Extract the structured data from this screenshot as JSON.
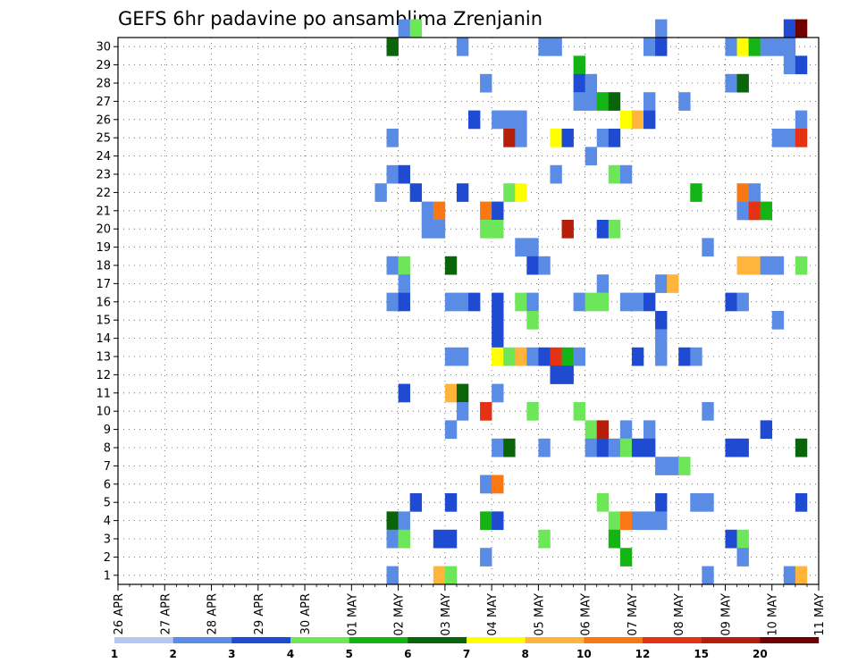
{
  "chart_data": {
    "type": "heatmap",
    "title": "GEFS 6hr padavine po ansamblima Zrenjanin",
    "x_tick_labels": [
      "26 APR",
      "27 APR",
      "28 APR",
      "29 APR",
      "30 APR",
      "01 MAY",
      "02 MAY",
      "03 MAY",
      "04 MAY",
      "05 MAY",
      "06 MAY",
      "07 MAY",
      "08 MAY",
      "09 MAY",
      "10 MAY",
      "11 MAY"
    ],
    "y_tick_labels": [
      "1",
      "2",
      "3",
      "4",
      "5",
      "6",
      "7",
      "8",
      "9",
      "10",
      "11",
      "12",
      "13",
      "14",
      "15",
      "16",
      "17",
      "18",
      "19",
      "20",
      "21",
      "22",
      "23",
      "24",
      "25",
      "26",
      "27",
      "28",
      "29",
      "30"
    ],
    "x_unit": "6-hour step from 26 APR 00Z",
    "y_unit": "ensemble member",
    "grid": true,
    "colorbar": {
      "boundaries": [
        1,
        2,
        3,
        4,
        5,
        6,
        7,
        8,
        10,
        12,
        15,
        20
      ],
      "boundary_labels": [
        "1",
        "2",
        "3",
        "4",
        "5",
        "6",
        "7",
        "8",
        "10",
        "12",
        "15",
        "20"
      ],
      "colors": [
        "#b4c8f0",
        "#5a8ce6",
        "#1e4bd2",
        "#6ee65a",
        "#14b414",
        "#0a640a",
        "#ffff00",
        "#ffb43c",
        "#fa7814",
        "#e63214",
        "#b41e0a",
        "#6e0000"
      ]
    },
    "cells": [
      [
        24,
        30,
        1
      ],
      [
        25,
        30,
        3
      ],
      [
        46,
        30,
        1
      ],
      [
        57,
        30,
        2
      ],
      [
        58,
        30,
        11
      ],
      [
        23,
        29,
        5
      ],
      [
        29,
        29,
        1
      ],
      [
        36,
        29,
        1
      ],
      [
        37,
        29,
        1
      ],
      [
        45,
        29,
        1
      ],
      [
        46,
        29,
        2
      ],
      [
        52,
        29,
        1
      ],
      [
        53,
        29,
        6
      ],
      [
        54,
        29,
        4
      ],
      [
        55,
        29,
        1
      ],
      [
        56,
        29,
        1
      ],
      [
        57,
        29,
        1
      ],
      [
        39,
        28,
        4
      ],
      [
        57,
        28,
        1
      ],
      [
        58,
        28,
        2
      ],
      [
        31,
        27,
        1
      ],
      [
        39,
        27,
        2
      ],
      [
        40,
        27,
        1
      ],
      [
        52,
        27,
        1
      ],
      [
        53,
        27,
        5
      ],
      [
        39,
        26,
        1
      ],
      [
        40,
        26,
        1
      ],
      [
        41,
        26,
        4
      ],
      [
        42,
        26,
        5
      ],
      [
        45,
        26,
        1
      ],
      [
        48,
        26,
        1
      ],
      [
        30,
        25,
        2
      ],
      [
        32,
        25,
        1
      ],
      [
        33,
        25,
        1
      ],
      [
        34,
        25,
        1
      ],
      [
        43,
        25,
        6
      ],
      [
        44,
        25,
        7
      ],
      [
        45,
        25,
        2
      ],
      [
        58,
        25,
        1
      ],
      [
        23,
        24,
        1
      ],
      [
        33,
        24,
        10
      ],
      [
        34,
        24,
        1
      ],
      [
        37,
        24,
        6
      ],
      [
        38,
        24,
        2
      ],
      [
        41,
        24,
        1
      ],
      [
        42,
        24,
        2
      ],
      [
        56,
        24,
        1
      ],
      [
        57,
        24,
        1
      ],
      [
        58,
        24,
        9
      ],
      [
        40,
        23,
        1
      ],
      [
        23,
        22,
        1
      ],
      [
        24,
        22,
        2
      ],
      [
        37,
        22,
        1
      ],
      [
        42,
        22,
        3
      ],
      [
        43,
        22,
        1
      ],
      [
        22,
        21,
        1
      ],
      [
        25,
        21,
        2
      ],
      [
        29,
        21,
        2
      ],
      [
        33,
        21,
        3
      ],
      [
        34,
        21,
        6
      ],
      [
        49,
        21,
        4
      ],
      [
        53,
        21,
        8
      ],
      [
        54,
        21,
        1
      ],
      [
        26,
        20,
        1
      ],
      [
        27,
        20,
        8
      ],
      [
        31,
        20,
        8
      ],
      [
        32,
        20,
        2
      ],
      [
        53,
        20,
        1
      ],
      [
        54,
        20,
        9
      ],
      [
        55,
        20,
        4
      ],
      [
        26,
        19,
        1
      ],
      [
        27,
        19,
        1
      ],
      [
        31,
        19,
        3
      ],
      [
        32,
        19,
        3
      ],
      [
        38,
        19,
        10
      ],
      [
        41,
        19,
        2
      ],
      [
        42,
        19,
        3
      ],
      [
        34,
        18,
        1
      ],
      [
        35,
        18,
        1
      ],
      [
        50,
        18,
        1
      ],
      [
        23,
        17,
        1
      ],
      [
        24,
        17,
        3
      ],
      [
        28,
        17,
        5
      ],
      [
        35,
        17,
        2
      ],
      [
        36,
        17,
        1
      ],
      [
        53,
        17,
        7
      ],
      [
        54,
        17,
        7
      ],
      [
        55,
        17,
        1
      ],
      [
        56,
        17,
        1
      ],
      [
        58,
        17,
        3
      ],
      [
        24,
        16,
        1
      ],
      [
        41,
        16,
        1
      ],
      [
        46,
        16,
        1
      ],
      [
        47,
        16,
        7
      ],
      [
        23,
        15,
        1
      ],
      [
        24,
        15,
        2
      ],
      [
        28,
        15,
        1
      ],
      [
        29,
        15,
        1
      ],
      [
        30,
        15,
        2
      ],
      [
        32,
        15,
        2
      ],
      [
        34,
        15,
        3
      ],
      [
        35,
        15,
        1
      ],
      [
        39,
        15,
        1
      ],
      [
        40,
        15,
        3
      ],
      [
        41,
        15,
        3
      ],
      [
        43,
        15,
        1
      ],
      [
        44,
        15,
        1
      ],
      [
        45,
        15,
        2
      ],
      [
        52,
        15,
        2
      ],
      [
        53,
        15,
        1
      ],
      [
        32,
        14,
        2
      ],
      [
        35,
        14,
        3
      ],
      [
        46,
        14,
        2
      ],
      [
        56,
        14,
        1
      ],
      [
        32,
        13,
        2
      ],
      [
        46,
        13,
        1
      ],
      [
        28,
        12,
        1
      ],
      [
        29,
        12,
        1
      ],
      [
        32,
        12,
        6
      ],
      [
        33,
        12,
        3
      ],
      [
        34,
        12,
        7
      ],
      [
        35,
        12,
        1
      ],
      [
        36,
        12,
        2
      ],
      [
        37,
        12,
        9
      ],
      [
        38,
        12,
        4
      ],
      [
        39,
        12,
        1
      ],
      [
        44,
        12,
        2
      ],
      [
        46,
        12,
        1
      ],
      [
        48,
        12,
        2
      ],
      [
        49,
        12,
        1
      ],
      [
        37,
        11,
        2
      ],
      [
        38,
        11,
        2
      ],
      [
        24,
        10,
        2
      ],
      [
        28,
        10,
        7
      ],
      [
        29,
        10,
        5
      ],
      [
        32,
        10,
        1
      ],
      [
        29,
        9,
        1
      ],
      [
        31,
        9,
        12
      ],
      [
        35,
        9,
        3
      ],
      [
        39,
        9,
        3
      ],
      [
        50,
        9,
        1
      ],
      [
        28,
        8,
        1
      ],
      [
        40,
        8,
        3
      ],
      [
        41,
        8,
        10
      ],
      [
        43,
        8,
        1
      ],
      [
        45,
        8,
        1
      ],
      [
        55,
        8,
        2
      ],
      [
        32,
        7,
        1
      ],
      [
        33,
        7,
        5
      ],
      [
        36,
        7,
        1
      ],
      [
        40,
        7,
        1
      ],
      [
        41,
        7,
        2
      ],
      [
        42,
        7,
        1
      ],
      [
        43,
        7,
        3
      ],
      [
        44,
        7,
        2
      ],
      [
        45,
        7,
        2
      ],
      [
        52,
        7,
        2
      ],
      [
        53,
        7,
        2
      ],
      [
        58,
        7,
        5
      ],
      [
        46,
        6,
        1
      ],
      [
        47,
        6,
        1
      ],
      [
        48,
        6,
        3
      ],
      [
        31,
        5,
        1
      ],
      [
        32,
        5,
        8
      ],
      [
        25,
        4,
        2
      ],
      [
        28,
        4,
        2
      ],
      [
        41,
        4,
        3
      ],
      [
        46,
        4,
        2
      ],
      [
        49,
        4,
        1
      ],
      [
        50,
        4,
        1
      ],
      [
        58,
        4,
        2
      ],
      [
        23,
        3,
        5
      ],
      [
        24,
        3,
        1
      ],
      [
        31,
        3,
        4
      ],
      [
        32,
        3,
        2
      ],
      [
        42,
        3,
        3
      ],
      [
        43,
        3,
        8
      ],
      [
        44,
        3,
        1
      ],
      [
        45,
        3,
        1
      ],
      [
        46,
        3,
        1
      ],
      [
        23,
        2,
        1
      ],
      [
        24,
        2,
        3
      ],
      [
        27,
        2,
        2
      ],
      [
        28,
        2,
        2
      ],
      [
        36,
        2,
        3
      ],
      [
        42,
        2,
        4
      ],
      [
        52,
        2,
        2
      ],
      [
        53,
        2,
        3
      ],
      [
        31,
        1,
        1
      ],
      [
        43,
        1,
        4
      ],
      [
        53,
        1,
        1
      ],
      [
        23,
        0,
        1
      ],
      [
        27,
        0,
        7
      ],
      [
        28,
        0,
        3
      ],
      [
        50,
        0,
        1
      ],
      [
        57,
        0,
        1
      ],
      [
        58,
        0,
        7
      ]
    ]
  }
}
